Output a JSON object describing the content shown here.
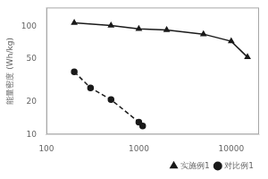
{
  "chart_data": {
    "type": "line",
    "ylabel": "能量密度 (Wh/kg)",
    "series": [
      {
        "name": "实施例1",
        "color": "#1a1a1a",
        "marker": "triangle",
        "line_style": "solid",
        "x": [
          200,
          500,
          1000,
          2000,
          5000,
          10000,
          15000
        ],
        "values": [
          108,
          102,
          95,
          93,
          85,
          73,
          52
        ]
      },
      {
        "name": "对比例1",
        "color": "#1a1a1a",
        "marker": "circle",
        "line_style": "dashed",
        "x": [
          200,
          300,
          500,
          1000,
          1100
        ],
        "values": [
          38,
          27,
          21,
          13,
          12
        ]
      }
    ],
    "xlim": [
      100,
      20000
    ],
    "ylim": [
      10,
      150
    ],
    "xticks": [
      100,
      1000,
      10000
    ],
    "yticks": [
      10,
      20,
      50,
      100
    ],
    "log": true,
    "grid": false,
    "legend": "lower right"
  }
}
